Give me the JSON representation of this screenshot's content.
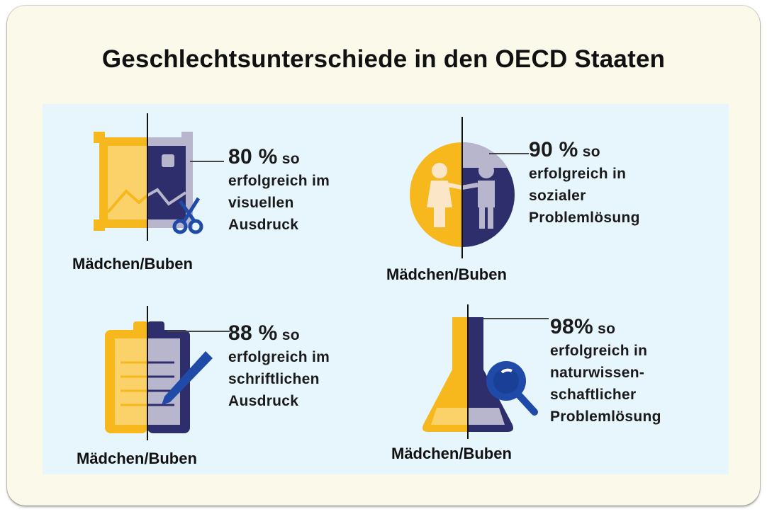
{
  "title": "Geschlechtsunterschiede in den OECD Staaten",
  "colors": {
    "girls": "#f6b81c",
    "boys": "#2d2e6b",
    "grey": "#b7b6cc",
    "accent_blue": "#1f4aa8",
    "panel_bg": "#e7f5fd",
    "card_bg": "#fbf9ea"
  },
  "items": [
    {
      "icon": "picture-scissors-icon",
      "percent": "80 %",
      "so": "so",
      "lines": [
        "erfolgreich im",
        "visuellen",
        "Ausdruck"
      ],
      "caption": "Mädchen/Buben",
      "value": 0.8
    },
    {
      "icon": "people-handshake-icon",
      "percent": "90 %",
      "so": "so",
      "lines": [
        "erfolgreich in",
        "sozialer",
        "Problemlösung"
      ],
      "caption": "Mädchen/Buben",
      "value": 0.9
    },
    {
      "icon": "clipboard-pen-icon",
      "percent": "88 %",
      "so": "so",
      "lines": [
        "erfolgreich im",
        "schriftlichen",
        "Ausdruck"
      ],
      "caption": "Mädchen/Buben",
      "value": 0.88
    },
    {
      "icon": "flask-magnifier-icon",
      "percent": "98%",
      "so": "so",
      "lines": [
        "erfolgreich in",
        "naturwissen-",
        "schaftlicher",
        "Problemlösung"
      ],
      "caption": "Mädchen/Buben",
      "value": 0.98
    }
  ]
}
